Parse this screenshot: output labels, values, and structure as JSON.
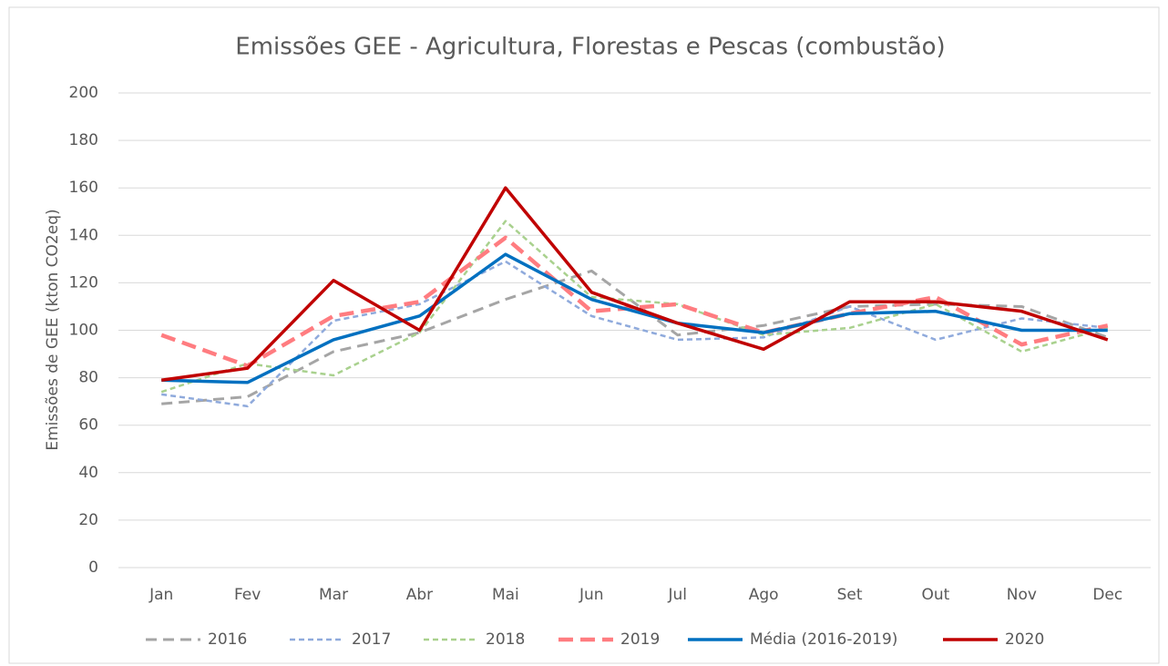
{
  "chart_data": {
    "type": "line",
    "title": "Emissões GEE - Agricultura, Florestas e Pescas (combustão)",
    "y_label": "Emissões de GEE (kton CO2eq)",
    "categories": [
      "Jan",
      "Fev",
      "Mar",
      "Abr",
      "Mai",
      "Jun",
      "Jul",
      "Ago",
      "Set",
      "Out",
      "Nov",
      "Dec"
    ],
    "ylim": [
      0,
      200
    ],
    "yticks": [
      0,
      20,
      40,
      60,
      80,
      100,
      120,
      140,
      160,
      180,
      200
    ],
    "grid": true,
    "legend": "bottom",
    "series": [
      {
        "name": "2016",
        "color": "#a5a5a5",
        "style": "dashed",
        "values": [
          69,
          72,
          91,
          99,
          113,
          125,
          98,
          102,
          110,
          111,
          110,
          97
        ]
      },
      {
        "name": "2017",
        "color": "#8faadc",
        "style": "dotted",
        "values": [
          73,
          68,
          104,
          111,
          129,
          106,
          96,
          97,
          110,
          96,
          105,
          101
        ]
      },
      {
        "name": "2018",
        "color": "#a9d18e",
        "style": "dotted",
        "values": [
          74,
          86,
          81,
          99,
          146,
          114,
          111,
          98,
          101,
          111,
          91,
          101
        ]
      },
      {
        "name": "2019",
        "color": "#ff7c80",
        "style": "dashed-thick",
        "values": [
          98,
          85,
          106,
          112,
          139,
          108,
          111,
          99,
          107,
          114,
          94,
          102
        ]
      },
      {
        "name": "Média (2016-2019)",
        "color": "#0070c0",
        "style": "solid",
        "values": [
          79,
          78,
          96,
          106,
          132,
          113,
          103,
          99,
          107,
          108,
          100,
          100
        ]
      },
      {
        "name": "2020",
        "color": "#c00000",
        "style": "solid",
        "values": [
          79,
          84,
          121,
          100,
          160,
          116,
          103,
          92,
          112,
          112,
          108,
          96
        ]
      }
    ]
  }
}
